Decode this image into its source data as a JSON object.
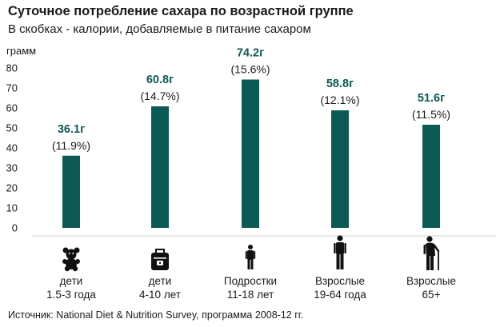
{
  "title": "Суточное потребление сахара по возрастной группе",
  "subtitle": "В скобках - калории, добавляемые в питание сахаром",
  "source": "Источник: National Diet & Nutrition Survey, программа 2008-12 гг.",
  "colors": {
    "bar": "#0b5a55",
    "value_label": "#0b5a55",
    "text": "#1a1a1a"
  },
  "chart_data": {
    "type": "bar",
    "ylabel": "грамм",
    "ylim": [
      0,
      80
    ],
    "yticks": [
      0,
      10,
      20,
      30,
      40,
      50,
      60,
      70,
      80
    ],
    "grid": false,
    "categories": [
      {
        "line1": "дети",
        "line2": "1.5-3 года",
        "icon": "teddy-bear-icon"
      },
      {
        "line1": "дети",
        "line2": "4-10 лет",
        "icon": "school-bag-icon"
      },
      {
        "line1": "Подростки",
        "line2": "11-18 лет",
        "icon": "teenager-icon"
      },
      {
        "line1": "Взрослые",
        "line2": "19-64 года",
        "icon": "adult-icon"
      },
      {
        "line1": "Взрослые",
        "line2": "65+",
        "icon": "elderly-with-cane-icon"
      }
    ],
    "values": [
      36.1,
      60.8,
      74.2,
      58.8,
      51.6
    ],
    "value_labels": [
      "36.1г",
      "60.8г",
      "74.2г",
      "58.8г",
      "51.6г"
    ],
    "percent_labels": [
      "(11.9%)",
      "(14.7%)",
      "(15.6%)",
      "(12.1%)",
      "(11.5%)"
    ]
  }
}
